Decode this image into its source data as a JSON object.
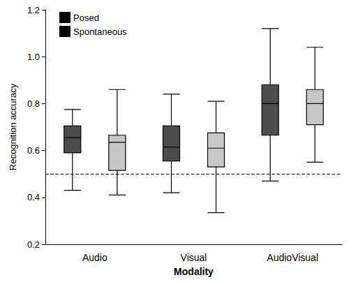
{
  "chart_data": {
    "type": "boxplot",
    "categories": [
      "Audio",
      "Visual",
      "AudioVisual"
    ],
    "x_label": "Modality",
    "y_label": "Recognition accuracy",
    "series": [
      {
        "name": "Posed",
        "color": "#4d4d4d",
        "values": [
          [
            0.43,
            0.59,
            0.655,
            0.705,
            0.775
          ],
          [
            0.42,
            0.555,
            0.615,
            0.705,
            0.84
          ],
          [
            0.47,
            0.665,
            0.8,
            0.88,
            1.12
          ]
        ]
      },
      {
        "name": "Spontaneous",
        "color": "#c8c8c8",
        "values": [
          [
            0.41,
            0.515,
            0.635,
            0.665,
            0.86
          ],
          [
            0.335,
            0.53,
            0.61,
            0.675,
            0.81
          ],
          [
            0.55,
            0.71,
            0.8,
            0.86,
            1.04
          ]
        ]
      }
    ],
    "ylim": [
      0.2,
      1.2
    ],
    "yticks": [
      0.2,
      0.4,
      0.6,
      0.8,
      {
        "value": 1,
        "label": "1.0"
      },
      1.2
    ],
    "reference_line": {
      "value": 0.5,
      "line_style": "dashed"
    },
    "legend": "top-left",
    "grid": false
  }
}
